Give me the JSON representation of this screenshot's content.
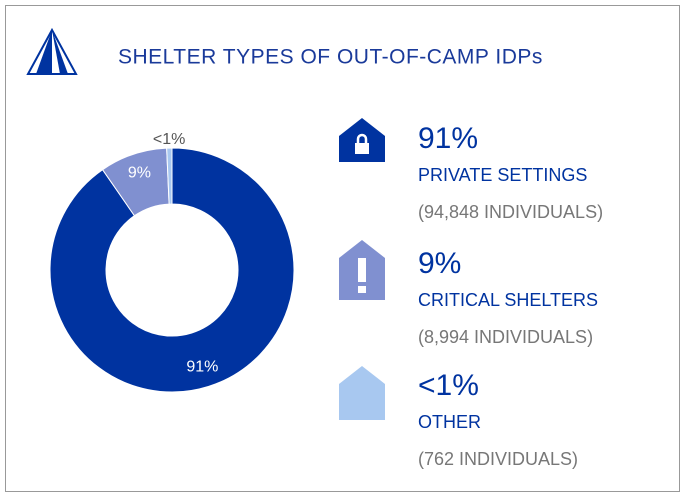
{
  "chart_data": {
    "type": "donut",
    "title": "SHELTER TYPES OF OUT-OF-CAMP IDPs",
    "categories": [
      "PRIVATE SETTINGS",
      "CRITICAL SHELTERS",
      "OTHER"
    ],
    "values": [
      91,
      9,
      0.7
    ],
    "value_labels": [
      "91%",
      "9%",
      "<1%"
    ],
    "details": [
      "(94,848 INDIVIDUALS)",
      "(8,994 INDIVIDUALS)",
      "(762 INDIVIDUALS)"
    ],
    "colors": [
      "#0033a0",
      "#8090d0",
      "#a8c8f0"
    ]
  }
}
